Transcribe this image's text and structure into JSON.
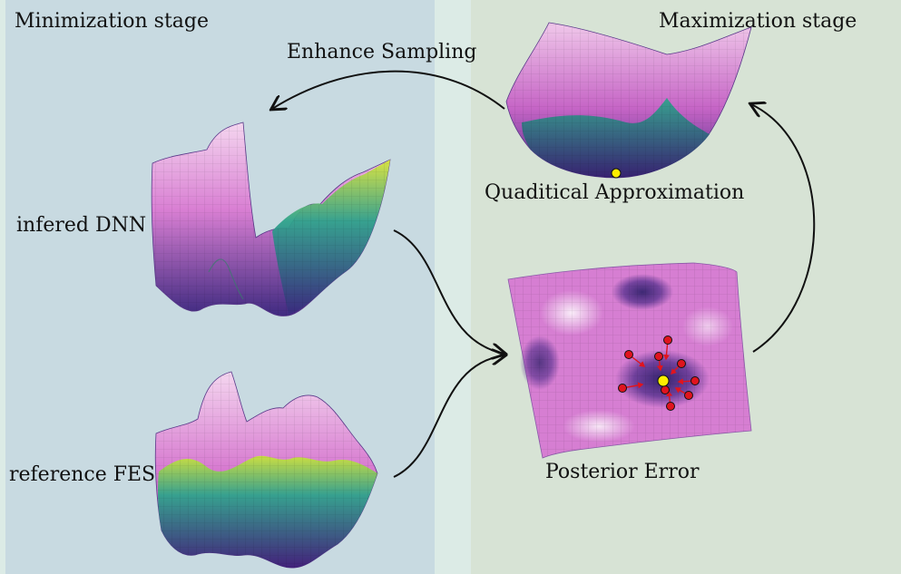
{
  "panels": {
    "left_title": "Minimization stage",
    "right_title": "Maximization stage"
  },
  "labels": {
    "enhance": "Enhance Sampling",
    "quad": "Quaditical Approximation",
    "dnn": "infered DNN",
    "ref": "reference FES",
    "posterior": "Posterior Error"
  },
  "colors": {
    "left_panel": "#c8dae1",
    "right_panel": "#d7e3d5",
    "gap": "#dcebe6",
    "surface_high": "#f2cdec",
    "surface_mid": "#d97fd3",
    "surface_low": "#4a2d86",
    "surface_valley": "#2fa38c",
    "surface_peak": "#c9e23a",
    "marker_red": "#e0141e",
    "marker_yellow": "#ffee00"
  }
}
